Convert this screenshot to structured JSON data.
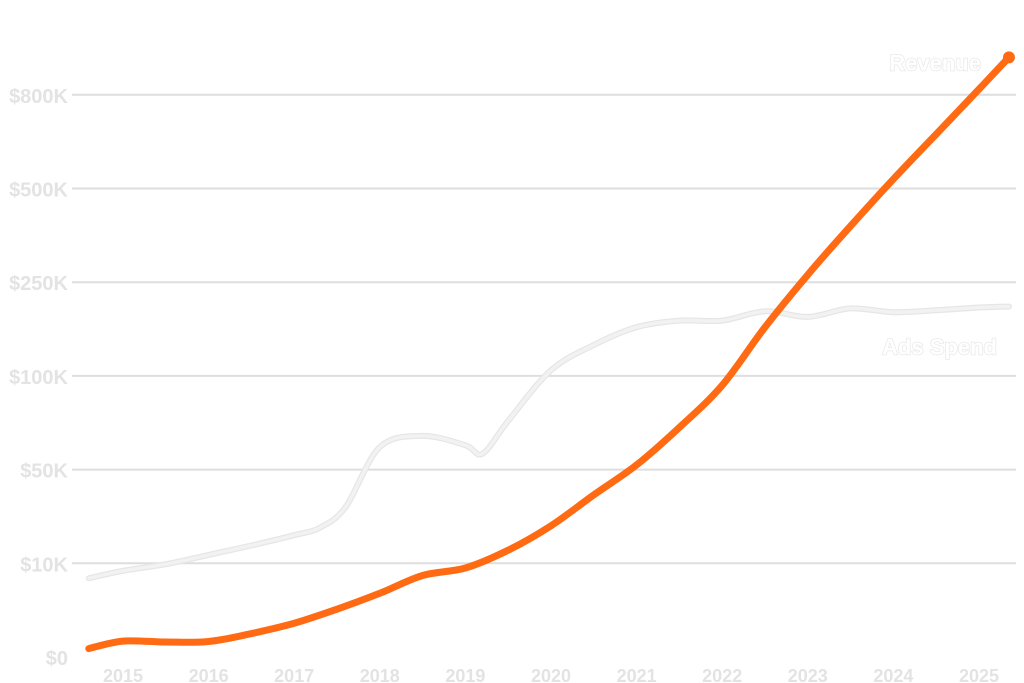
{
  "chart_data": {
    "type": "line",
    "title": "",
    "xlabel": "",
    "ylabel": "",
    "x_ticks": [
      "2015",
      "2016",
      "2017",
      "2018",
      "2019",
      "2020",
      "2021",
      "2022",
      "2023",
      "2024",
      "2025"
    ],
    "y_ticks": [
      "$0",
      "$10K",
      "$50K",
      "$100K",
      "$250K",
      "$500K",
      "$800K"
    ],
    "grid": true,
    "legend": "inline",
    "series": [
      {
        "name": "Revenue",
        "color": "#ff6a13",
        "x": [
          2014.6,
          2015.0,
          2015.5,
          2016.0,
          2016.5,
          2017.0,
          2017.5,
          2018.0,
          2018.5,
          2019.0,
          2019.5,
          2020.0,
          2020.5,
          2021.0,
          2021.5,
          2022.0,
          2022.5,
          2023.0,
          2023.5,
          2024.0,
          2024.5,
          2025.0,
          2025.35
        ],
        "y": [
          0.9,
          1.7,
          1.6,
          1.65,
          2.5,
          3.6,
          5.1,
          6.8,
          8.7,
          9.5,
          11.4,
          14.0,
          17.3,
          20.5,
          24.5,
          29.0,
          35.2,
          40.8,
          46.0,
          51.0,
          55.8,
          60.6,
          64.0
        ]
      },
      {
        "name": "Ads Spend",
        "color": "#f2f2f2",
        "x": [
          2014.6,
          2015.0,
          2015.5,
          2016.0,
          2016.5,
          2017.0,
          2017.3,
          2017.6,
          2018.0,
          2018.5,
          2019.0,
          2019.2,
          2019.5,
          2020.0,
          2020.5,
          2021.0,
          2021.5,
          2022.0,
          2022.5,
          2023.0,
          2023.5,
          2024.0,
          2024.5,
          2025.0,
          2025.35
        ],
        "y": [
          8.4,
          9.2,
          9.9,
          10.9,
          11.9,
          13.0,
          13.8,
          16.0,
          22.4,
          23.6,
          22.6,
          21.7,
          25.2,
          30.6,
          33.3,
          35.2,
          35.9,
          35.9,
          36.9,
          36.3,
          37.2,
          36.8,
          37.0,
          37.3,
          37.4
        ]
      }
    ]
  }
}
